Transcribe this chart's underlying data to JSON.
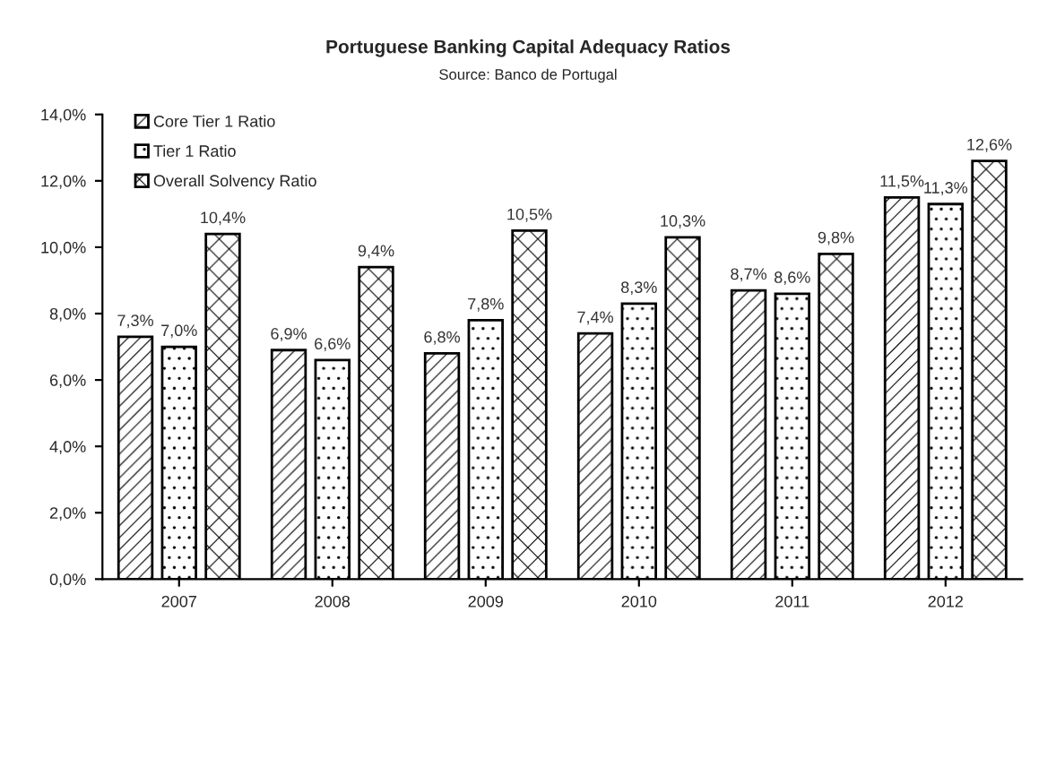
{
  "chart_data": {
    "type": "bar",
    "title": "Portuguese Banking Capital Adequacy Ratios",
    "subtitle": "Source: Banco de Portugal",
    "categories": [
      "2007",
      "2008",
      "2009",
      "2010",
      "2011",
      "2012"
    ],
    "series": [
      {
        "name": "Core Tier 1 Ratio",
        "color": "#000000",
        "values": [
          7.3,
          6.9,
          6.8,
          7.4,
          8.7,
          11.5
        ],
        "value_labels": [
          "7,3%",
          "6,9%",
          "6,8%",
          "7,4%",
          "8,7%",
          "11,5%"
        ]
      },
      {
        "name": "Tier 1 Ratio",
        "color": "#000000",
        "values": [
          7.0,
          6.6,
          7.8,
          8.3,
          8.6,
          11.3
        ],
        "value_labels": [
          "7,0%",
          "6,6%",
          "7,8%",
          "8,3%",
          "8,6%",
          "11,3%"
        ]
      },
      {
        "name": "Overall Solvency Ratio",
        "color": "#000000",
        "values": [
          10.4,
          9.4,
          10.5,
          10.3,
          9.8,
          12.6
        ],
        "value_labels": [
          "10,4%",
          "9,4%",
          "10,5%",
          "10,3%",
          "9,8%",
          "12,6%"
        ]
      }
    ],
    "ylim": [
      0,
      14
    ],
    "yticks": [
      {
        "value": 0,
        "label": "0,0%"
      },
      {
        "value": 2,
        "label": "2,0%"
      },
      {
        "value": 4,
        "label": "4,0%"
      },
      {
        "value": 6,
        "label": "6,0%"
      },
      {
        "value": 8,
        "label": "8,0%"
      },
      {
        "value": 10,
        "label": "10,0%"
      },
      {
        "value": 12,
        "label": "12,0%"
      },
      {
        "value": 14,
        "label": "14,0%"
      }
    ],
    "grid": false,
    "legend": "top left"
  }
}
